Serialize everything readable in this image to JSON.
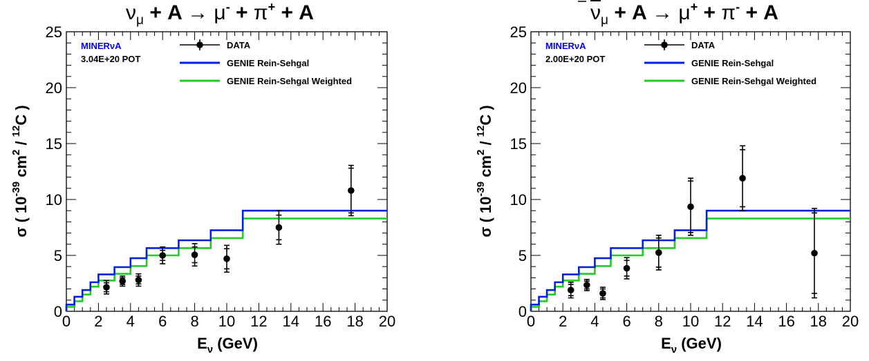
{
  "chart_data": [
    {
      "type": "line",
      "title": "ν_μ + A → μ⁻ + π⁺ + A",
      "title_parts": {
        "a": "ν",
        "a_sub": "μ",
        "b": " + A ",
        "arrow": "→",
        "c": " μ",
        "c_sup": "-",
        "d": " + ",
        "e": "π",
        "e_sup": "+",
        "f": " + A"
      },
      "xlabel": "E_ν (GeV)",
      "xlabel_parts": {
        "main": "E",
        "sub": "ν",
        "rest": " (GeV)"
      },
      "ylabel": "σ ( 10⁻³⁹ cm² / ¹²C )",
      "ylabel_parts": {
        "a": "σ ( 10",
        "a_sup": "-39",
        "b": " cm",
        "b_sup": "2",
        "c": " / ",
        "c_sup": "12",
        "d": "C )"
      },
      "xlim": [
        0,
        20
      ],
      "ylim": [
        0,
        25
      ],
      "x_ticks": [
        "0",
        "2",
        "4",
        "6",
        "8",
        "10",
        "12",
        "14",
        "16",
        "18",
        "20"
      ],
      "y_ticks": [
        "0",
        "5",
        "10",
        "15",
        "20",
        "25"
      ],
      "grid": false,
      "experiment": "MINERνA",
      "experiment_color": "#0000ee",
      "exposure": "3.04E+20 POT",
      "legend_position": "top",
      "legend": [
        "DATA",
        "GENIE Rein-Sehgal",
        "GENIE Rein-Sehgal Weighted"
      ],
      "series": [
        {
          "name": "DATA",
          "color": "#000000",
          "x": [
            2.5,
            3.5,
            4.5,
            6.0,
            8.0,
            10.0,
            13.25,
            17.75
          ],
          "y": [
            2.15,
            2.7,
            2.8,
            5.0,
            5.05,
            4.7,
            7.5,
            10.8
          ],
          "err_inner": [
            0.4,
            0.3,
            0.35,
            0.45,
            0.7,
            0.9,
            1.1,
            2.0
          ],
          "err_total": [
            0.6,
            0.45,
            0.55,
            0.75,
            1.0,
            1.2,
            1.5,
            2.25
          ]
        },
        {
          "name": "GENIE Rein-Sehgal",
          "color": "#0022dd",
          "edges": [
            0,
            0.5,
            1.0,
            1.5,
            2.0,
            3.0,
            4.0,
            5.0,
            7.0,
            9.0,
            11.0,
            15.5,
            20.0
          ],
          "values": [
            0.6,
            1.3,
            1.9,
            2.6,
            3.3,
            3.95,
            4.75,
            5.65,
            6.35,
            7.25,
            9.0,
            9.0
          ]
        },
        {
          "name": "GENIE Rein-Sehgal Weighted",
          "color": "#22cc22",
          "edges": [
            0,
            0.5,
            1.0,
            1.5,
            2.0,
            3.0,
            4.0,
            5.0,
            7.0,
            9.0,
            11.0,
            15.5,
            20.0
          ],
          "values": [
            0.4,
            0.9,
            1.5,
            2.2,
            2.75,
            3.35,
            4.05,
            5.0,
            5.65,
            6.55,
            8.3,
            8.3
          ]
        }
      ]
    },
    {
      "type": "line",
      "title": "ν̄_μ + A → μ⁺ + π⁻ + A",
      "title_parts": {
        "a": "ν",
        "a_sub": "μ",
        "b": " + A ",
        "arrow": "→",
        "c": " μ",
        "c_sup": "+",
        "d": " + ",
        "e": "π",
        "e_sup": "-",
        "f": " + A"
      },
      "xlabel": "E_ν (GeV)",
      "xlabel_parts": {
        "main": "E",
        "sub": "ν",
        "rest": " (GeV)"
      },
      "ylabel": "σ ( 10⁻³⁹ cm² / ¹²C )",
      "ylabel_parts": {
        "a": "σ ( 10",
        "a_sup": "-39",
        "b": " cm",
        "b_sup": "2",
        "c": " / ",
        "c_sup": "12",
        "d": "C )"
      },
      "xlim": [
        0,
        20
      ],
      "ylim": [
        0,
        25
      ],
      "x_ticks": [
        "0",
        "2",
        "4",
        "6",
        "8",
        "10",
        "12",
        "14",
        "16",
        "18",
        "20"
      ],
      "y_ticks": [
        "0",
        "5",
        "10",
        "15",
        "20",
        "25"
      ],
      "grid": false,
      "experiment": "MINERνA",
      "experiment_color": "#0000ee",
      "exposure": "2.00E+20 POT",
      "legend_position": "top",
      "legend": [
        "DATA",
        "GENIE Rein-Sehgal",
        "GENIE Rein-Sehgal Weighted"
      ],
      "series": [
        {
          "name": "DATA",
          "color": "#000000",
          "x": [
            2.5,
            3.5,
            4.5,
            6.0,
            8.0,
            10.0,
            13.25,
            17.75
          ],
          "y": [
            1.9,
            2.35,
            1.6,
            3.85,
            5.25,
            9.35,
            11.9,
            5.2
          ],
          "err_inner": [
            0.5,
            0.35,
            0.4,
            0.7,
            1.3,
            2.3,
            2.55,
            3.6
          ],
          "err_total": [
            0.7,
            0.5,
            0.55,
            0.95,
            1.55,
            2.55,
            2.9,
            4.0
          ]
        },
        {
          "name": "GENIE Rein-Sehgal",
          "color": "#0022dd",
          "edges": [
            0,
            0.5,
            1.0,
            1.5,
            2.0,
            3.0,
            4.0,
            5.0,
            7.0,
            9.0,
            11.0,
            15.5,
            20.0
          ],
          "values": [
            0.6,
            1.3,
            1.9,
            2.6,
            3.3,
            3.95,
            4.75,
            5.65,
            6.35,
            7.25,
            9.0,
            9.0
          ]
        },
        {
          "name": "GENIE Rein-Sehgal Weighted",
          "color": "#22cc22",
          "edges": [
            0,
            0.5,
            1.0,
            1.5,
            2.0,
            3.0,
            4.0,
            5.0,
            7.0,
            9.0,
            11.0,
            15.5,
            20.0
          ],
          "values": [
            0.4,
            0.9,
            1.5,
            2.2,
            2.75,
            3.35,
            4.05,
            5.0,
            5.65,
            6.55,
            8.3,
            8.3
          ]
        }
      ]
    }
  ]
}
